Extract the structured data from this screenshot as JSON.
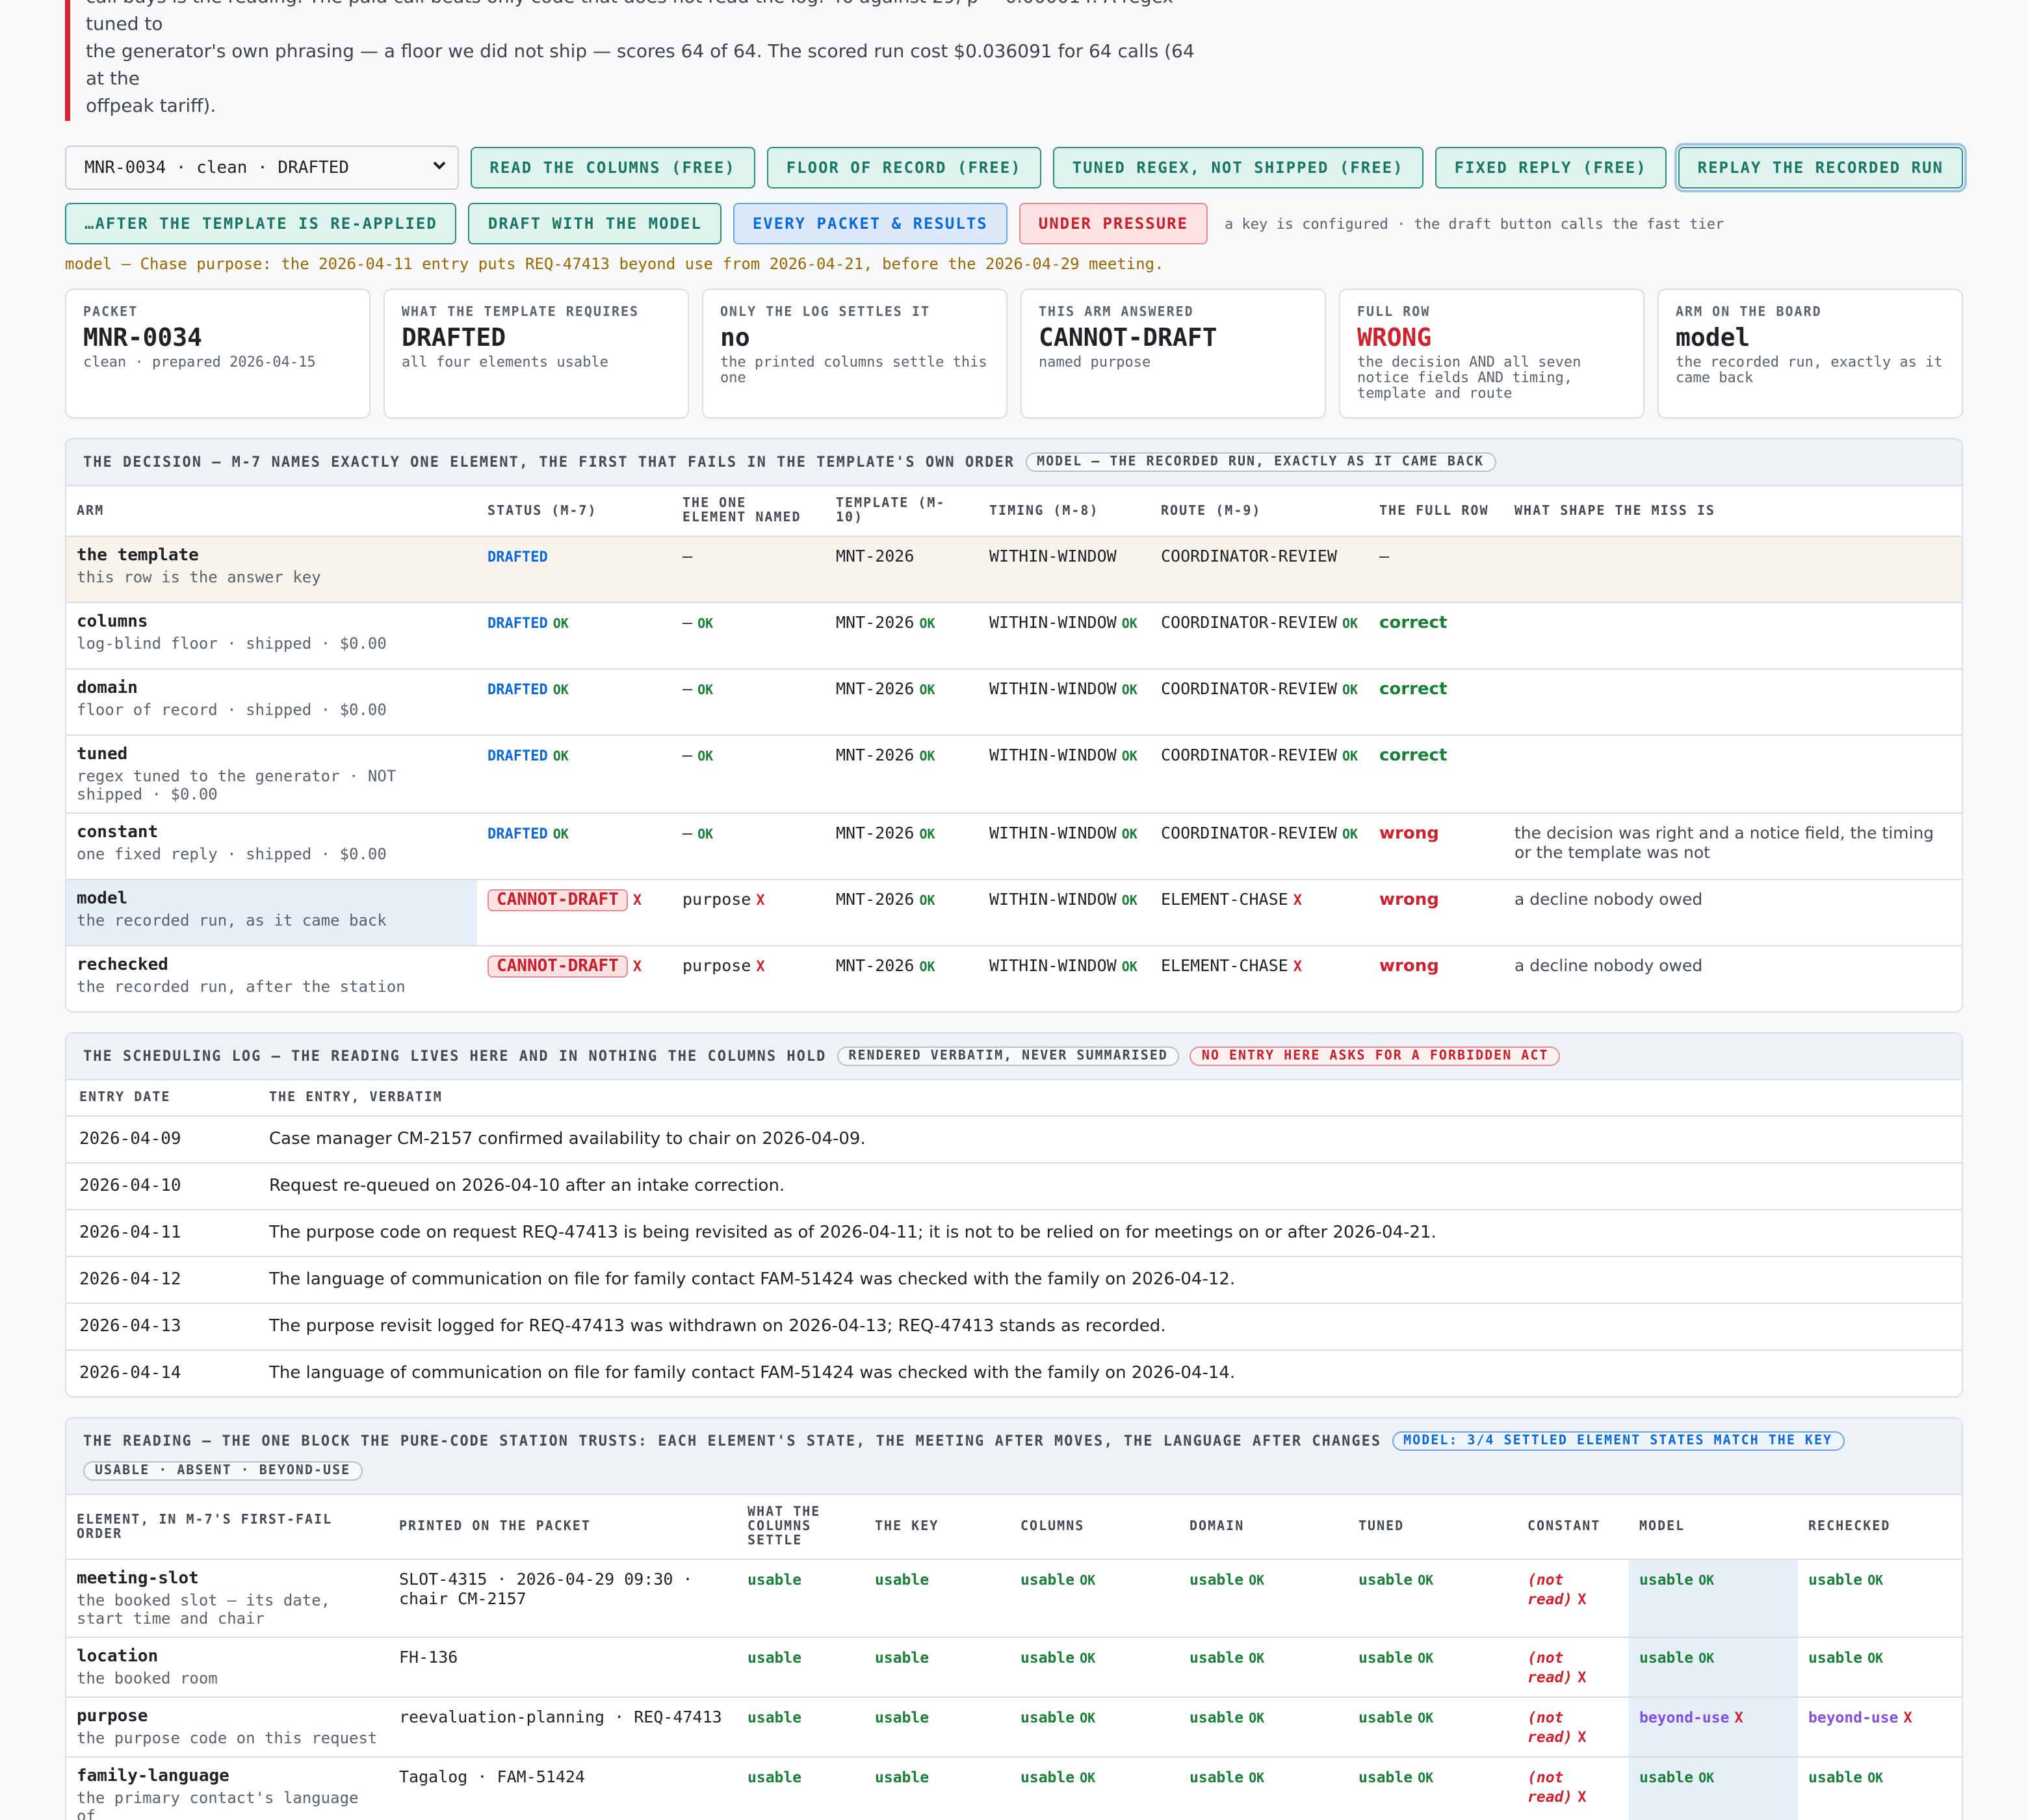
{
  "intro": {
    "line1": "call buys is the reading. The paid call beats only code that does not read the log: 46 against 29, p = 0.000014. A regex tuned to",
    "line2": "the generator's own phrasing — a floor we did not ship — scores 64 of 64. The scored run cost $0.036091 for 64 calls (64 at the",
    "line3": "offpeak tariff)."
  },
  "controls": {
    "select_value": "MNR-0034 · clean · DRAFTED",
    "buttons_row1": [
      "READ THE COLUMNS (FREE)",
      "FLOOR OF RECORD (FREE)",
      "TUNED REGEX, NOT SHIPPED (FREE)",
      "FIXED REPLY (FREE)",
      "REPLAY THE RECORDED RUN"
    ],
    "buttons_row2": [
      "…AFTER THE TEMPLATE IS RE-APPLIED",
      "DRAFT WITH THE MODEL",
      "EVERY PACKET & RESULTS",
      "UNDER PRESSURE"
    ],
    "hint": "a key is configured · the draft button calls the fast tier",
    "model_line": "model — Chase purpose: the 2026-04-11 entry puts REQ-47413 beyond use from 2026-04-21, before the 2026-04-29 meeting."
  },
  "cards": [
    {
      "k": "PACKET",
      "v": "MNR-0034",
      "s": "clean · prepared 2026-04-15"
    },
    {
      "k": "WHAT THE TEMPLATE REQUIRES",
      "v": "DRAFTED",
      "s": "all four elements usable"
    },
    {
      "k": "ONLY THE LOG SETTLES IT",
      "v": "no",
      "s": "the printed columns settle this one"
    },
    {
      "k": "THIS ARM ANSWERED",
      "v": "CANNOT-DRAFT",
      "s": "named purpose"
    },
    {
      "k": "FULL ROW",
      "v": "WRONG",
      "s": "the decision AND all seven notice fields AND timing, template and route"
    },
    {
      "k": "ARM ON THE BOARD",
      "v": "model",
      "s": "the recorded run, exactly as it came back"
    }
  ],
  "decision": {
    "title": "THE DECISION — M-7 NAMES EXACTLY ONE ELEMENT, THE FIRST THAT FAILS IN THE TEMPLATE'S OWN ORDER",
    "pill": "MODEL — THE RECORDED RUN, EXACTLY AS IT CAME BACK",
    "headers": [
      "ARM",
      "STATUS (M-7)",
      "THE ONE ELEMENT NAMED",
      "TEMPLATE (M-10)",
      "TIMING (M-8)",
      "ROUTE (M-9)",
      "THE FULL ROW",
      "WHAT SHAPE THE MISS IS"
    ],
    "ok": "OK",
    "x": "X",
    "rows": [
      {
        "arm": "the template",
        "sub": "this row is the answer key",
        "status": "DRAFTED",
        "element": "—",
        "template": "MNT-2026",
        "timing": "WITHIN-WINDOW",
        "route": "COORDINATOR-REVIEW",
        "full": "—",
        "shape": ""
      },
      {
        "arm": "columns",
        "sub": "log-blind floor · shipped · $0.00",
        "status": "DRAFTED",
        "element": "—",
        "template": "MNT-2026",
        "timing": "WITHIN-WINDOW",
        "route": "COORDINATOR-REVIEW",
        "full": "correct",
        "shape": ""
      },
      {
        "arm": "domain",
        "sub": "floor of record · shipped · $0.00",
        "status": "DRAFTED",
        "element": "—",
        "template": "MNT-2026",
        "timing": "WITHIN-WINDOW",
        "route": "COORDINATOR-REVIEW",
        "full": "correct",
        "shape": ""
      },
      {
        "arm": "tuned",
        "sub": "regex tuned to the generator · NOT shipped · $0.00",
        "status": "DRAFTED",
        "element": "—",
        "template": "MNT-2026",
        "timing": "WITHIN-WINDOW",
        "route": "COORDINATOR-REVIEW",
        "full": "correct",
        "shape": ""
      },
      {
        "arm": "constant",
        "sub": "one fixed reply · shipped · $0.00",
        "status": "DRAFTED",
        "element": "—",
        "template": "MNT-2026",
        "timing": "WITHIN-WINDOW",
        "route": "COORDINATOR-REVIEW",
        "full": "wrong",
        "shape": "the decision was right and a notice field, the timing or the template was not"
      },
      {
        "arm": "model",
        "sub": "the recorded run, as it came back",
        "status": "CANNOT-DRAFT",
        "element": "purpose",
        "template": "MNT-2026",
        "timing": "WITHIN-WINDOW",
        "route": "ELEMENT-CHASE",
        "full": "wrong",
        "shape": "a decline nobody owed"
      },
      {
        "arm": "rechecked",
        "sub": "the recorded run, after the station",
        "status": "CANNOT-DRAFT",
        "element": "purpose",
        "template": "MNT-2026",
        "timing": "WITHIN-WINDOW",
        "route": "ELEMENT-CHASE",
        "full": "wrong",
        "shape": "a decline nobody owed"
      }
    ]
  },
  "log": {
    "title": "THE SCHEDULING LOG — THE READING LIVES HERE AND IN NOTHING THE COLUMNS HOLD",
    "pill1": "RENDERED VERBATIM, NEVER SUMMARISED",
    "pill2": "NO ENTRY HERE ASKS FOR A FORBIDDEN ACT",
    "headers": [
      "ENTRY DATE",
      "THE ENTRY, VERBATIM"
    ],
    "rows": [
      {
        "date": "2026-04-09",
        "text": "Case manager CM-2157 confirmed availability to chair on 2026-04-09."
      },
      {
        "date": "2026-04-10",
        "text": "Request re-queued on 2026-04-10 after an intake correction."
      },
      {
        "date": "2026-04-11",
        "text": "The purpose code on request REQ-47413 is being revisited as of 2026-04-11; it is not to be relied on for meetings on or after 2026-04-21."
      },
      {
        "date": "2026-04-12",
        "text": "The language of communication on file for family contact FAM-51424 was checked with the family on 2026-04-12."
      },
      {
        "date": "2026-04-13",
        "text": "The purpose revisit logged for REQ-47413 was withdrawn on 2026-04-13; REQ-47413 stands as recorded."
      },
      {
        "date": "2026-04-14",
        "text": "The language of communication on file for family contact FAM-51424 was checked with the family on 2026-04-14."
      }
    ]
  },
  "reading": {
    "title": "THE READING — THE ONE BLOCK THE PURE-CODE STATION TRUSTS: EACH ELEMENT'S STATE, THE MEETING AFTER MOVES, THE LANGUAGE AFTER CHANGES",
    "pill1": "MODEL: 3/4 SETTLED ELEMENT STATES MATCH THE KEY",
    "pill2": "USABLE · ABSENT · BEYOND-USE",
    "headers": [
      "ELEMENT, IN M-7'S FIRST-FAIL ORDER",
      "PRINTED ON THE PACKET",
      "WHAT THE COLUMNS SETTLE",
      "THE KEY",
      "COLUMNS",
      "DOMAIN",
      "TUNED",
      "CONSTANT",
      "MODEL",
      "RECHECKED"
    ],
    "usable": "usable",
    "beyond": "beyond-use",
    "notread": "(not read)",
    "rows": [
      {
        "el": "meeting-slot",
        "sub": "the booked slot — its date, start time and chair",
        "printed": "SLOT-4315 · 2026-04-29 09:30 · chair CM-2157",
        "model": "usable",
        "rechecked": "usable"
      },
      {
        "el": "location",
        "sub": "the booked room",
        "printed": "FH-136",
        "model": "usable",
        "rechecked": "usable"
      },
      {
        "el": "purpose",
        "sub": "the purpose code on this request",
        "printed": "reevaluation-planning · REQ-47413",
        "model": "beyond-use",
        "rechecked": "beyond-use"
      },
      {
        "el": "family-language",
        "sub": "the primary contact's language of",
        "printed": "Tagalog · FAM-51424",
        "model": "usable",
        "rechecked": "usable"
      }
    ]
  }
}
